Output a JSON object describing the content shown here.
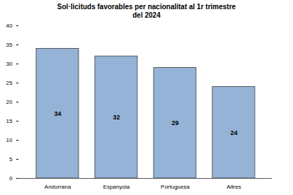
{
  "chart_data": {
    "type": "bar",
    "title": "Sol·licituds favorables per nacionalitat al 1r trimestre del 2024",
    "categories": [
      "Andorrana",
      "Espanyola",
      "Portuguesa",
      "Altres"
    ],
    "values": [
      34,
      32,
      29,
      24
    ],
    "color": "#95b3d7",
    "ylim": [
      0,
      40
    ],
    "yticks": [
      0,
      5,
      10,
      15,
      20,
      25,
      30,
      35,
      40
    ],
    "grid": false,
    "data_labels": true
  }
}
